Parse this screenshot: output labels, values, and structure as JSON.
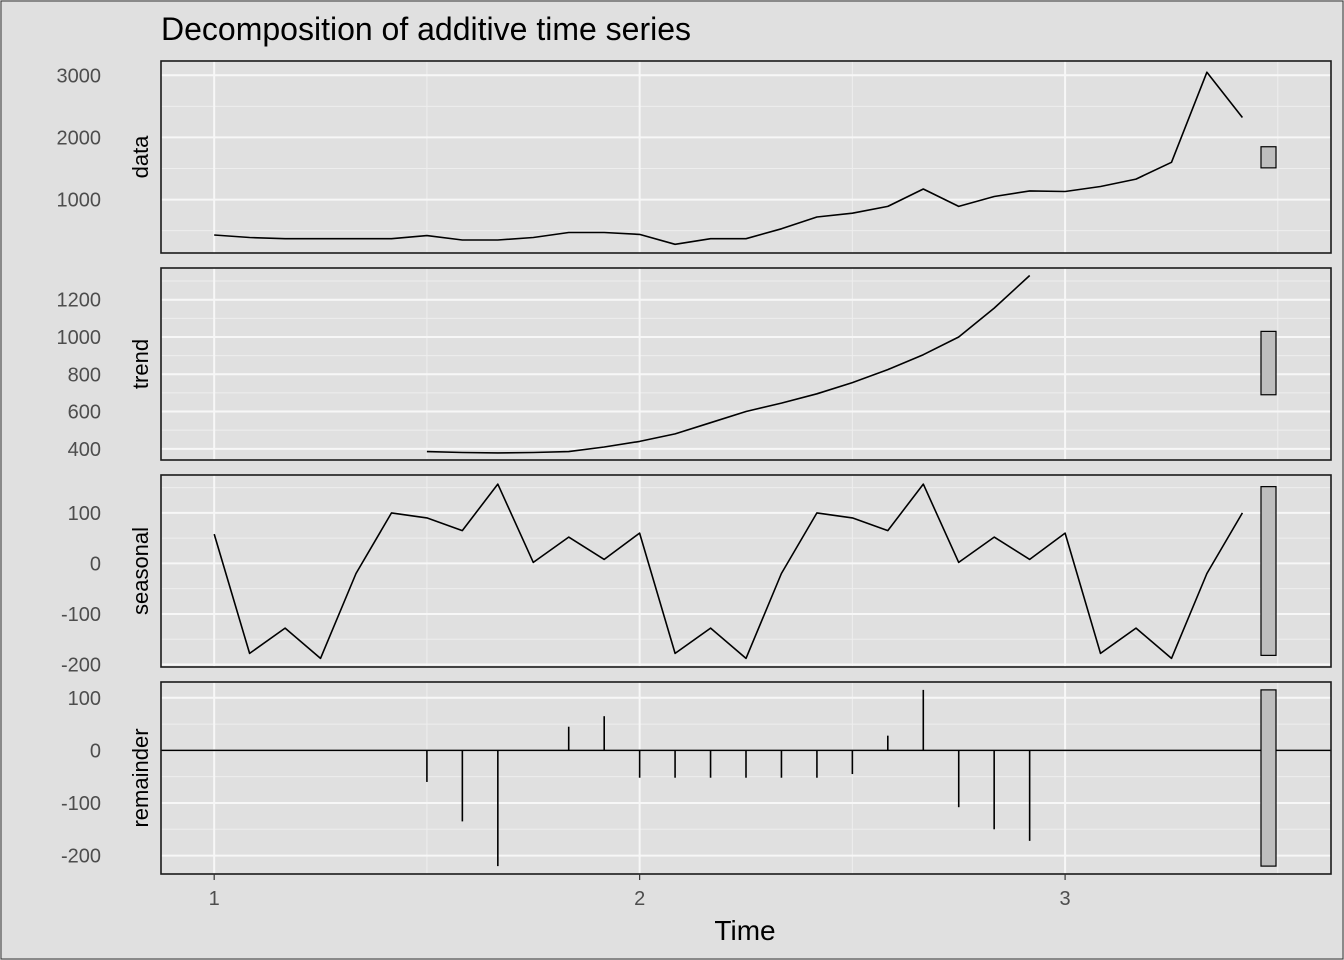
{
  "chart_data": {
    "type": "line",
    "title": "Decomposition of additive time series",
    "xlabel": "Time",
    "x_ticks": [
      "1",
      "2",
      "3"
    ],
    "xlim": [
      0.875,
      3.625
    ],
    "x": [
      1.0,
      1.0833,
      1.1667,
      1.25,
      1.3333,
      1.4167,
      1.5,
      1.5833,
      1.6667,
      1.75,
      1.8333,
      1.9167,
      2.0,
      2.0833,
      2.1667,
      2.25,
      2.3333,
      2.4167,
      2.5,
      2.5833,
      2.6667,
      2.75,
      2.8333,
      2.9167,
      3.0,
      3.0833,
      3.1667,
      3.25,
      3.3333,
      3.4167
    ],
    "grid": true,
    "panels": [
      {
        "name": "data",
        "ylabel": "data",
        "style": "line",
        "y_ticks": [
          "1000",
          "2000",
          "3000"
        ],
        "y_tick_values": [
          1000,
          2000,
          3000
        ],
        "ylim": [
          140,
          3230
        ],
        "scale_bar": [
          1510,
          1850
        ],
        "values": [
          430,
          390,
          370,
          370,
          370,
          370,
          420,
          350,
          350,
          390,
          470,
          470,
          440,
          280,
          370,
          370,
          530,
          720,
          780,
          890,
          1170,
          890,
          1050,
          1140,
          1130,
          1210,
          1330,
          1600,
          3050,
          2320
        ]
      },
      {
        "name": "trend",
        "ylabel": "trend",
        "style": "line",
        "y_ticks": [
          "400",
          "600",
          "800",
          "1000",
          "1200"
        ],
        "y_tick_values": [
          400,
          600,
          800,
          1000,
          1200
        ],
        "ylim": [
          340,
          1370
        ],
        "scale_bar": [
          690,
          1030
        ],
        "values": [
          null,
          null,
          null,
          null,
          null,
          null,
          385,
          380,
          378,
          380,
          385,
          410,
          440,
          480,
          540,
          600,
          645,
          695,
          755,
          825,
          905,
          1000,
          1155,
          1330,
          null,
          null,
          null,
          null,
          null,
          null
        ]
      },
      {
        "name": "seasonal",
        "ylabel": "seasonal",
        "style": "line",
        "y_ticks": [
          "-200",
          "-100",
          "0",
          "100"
        ],
        "y_tick_values": [
          -200,
          -100,
          0,
          100
        ],
        "ylim": [
          -205,
          175
        ],
        "scale_bar": [
          -182,
          152
        ],
        "values": [
          58,
          -178,
          -128,
          -188,
          -20,
          100,
          90,
          65,
          157,
          2,
          52,
          8,
          60,
          -178,
          -128,
          -188,
          -20,
          100,
          90,
          65,
          157,
          2,
          52,
          8,
          60,
          -178,
          -128,
          -188,
          -20,
          100
        ]
      },
      {
        "name": "remainder",
        "ylabel": "remainder",
        "style": "stem",
        "baseline": 0,
        "y_ticks": [
          "-200",
          "-100",
          "0",
          "100"
        ],
        "y_tick_values": [
          -200,
          -100,
          0,
          100
        ],
        "ylim": [
          -235,
          130
        ],
        "scale_bar": [
          -220,
          115
        ],
        "values": [
          null,
          null,
          null,
          null,
          null,
          null,
          -60,
          -135,
          -220,
          null,
          45,
          65,
          -52,
          -52,
          -52,
          -52,
          -52,
          -52,
          -45,
          28,
          115,
          -108,
          -150,
          -172,
          null,
          null,
          null,
          null,
          null,
          null
        ]
      }
    ]
  }
}
